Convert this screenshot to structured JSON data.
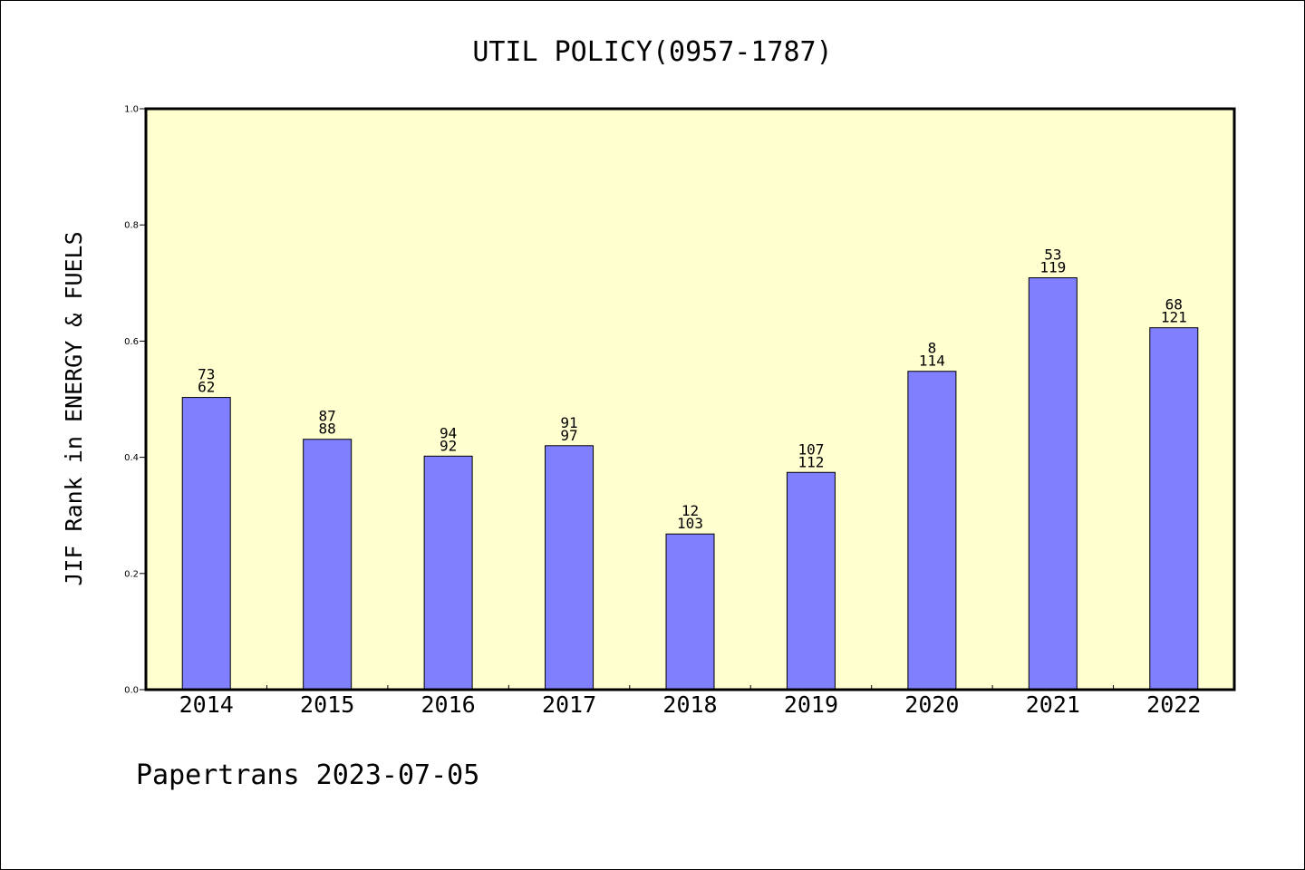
{
  "chart_data": {
    "type": "bar",
    "title": "UTIL POLICY(0957-1787)",
    "xlabel": "",
    "ylabel": "JIF Rank in ENERGY & FUELS",
    "ylim": [
      0,
      1.0
    ],
    "yticks": [
      "0.0",
      "0.2",
      "0.4",
      "0.6",
      "0.8",
      "1.0"
    ],
    "categories": [
      "2014",
      "2015",
      "2016",
      "2017",
      "2018",
      "2019",
      "2020",
      "2021",
      "2022"
    ],
    "values": [
      0.503,
      0.431,
      0.402,
      0.42,
      0.268,
      0.374,
      0.548,
      0.709,
      0.623
    ],
    "bar_labels_top": [
      "73",
      "87",
      "94",
      "91",
      "12",
      "107",
      "8",
      "53",
      "68"
    ],
    "bar_labels_bottom": [
      "62",
      "88",
      "92",
      "97",
      "103",
      "112",
      "114",
      "119",
      "121"
    ],
    "colors": {
      "plot_background": "#ffffd0",
      "bar_fill": "#8080ff",
      "bar_stroke": "#000000"
    },
    "grid": false,
    "legend": "none"
  },
  "footer": "Papertrans 2023-07-05"
}
